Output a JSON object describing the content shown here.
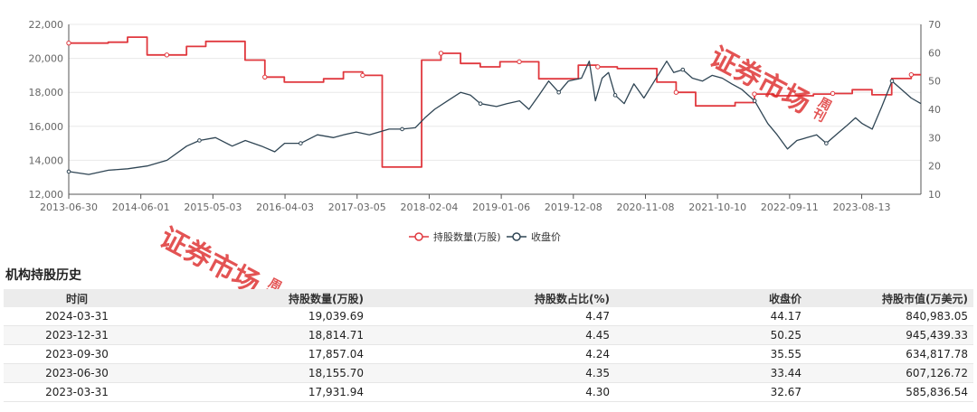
{
  "chart_data": {
    "type": "line",
    "x_ticks": [
      "2013-06-30",
      "2014-06-01",
      "2015-05-03",
      "2016-04-03",
      "2017-03-05",
      "2018-02-04",
      "2019-01-06",
      "2019-12-08",
      "2020-11-08",
      "2021-10-10",
      "2022-09-11",
      "2023-08-13"
    ],
    "y_left_ticks": [
      "12,000",
      "14,000",
      "16,000",
      "18,000",
      "20,000",
      "22,000"
    ],
    "y_right_ticks": [
      "10",
      "20",
      "30",
      "40",
      "50",
      "60",
      "70"
    ],
    "ylim_left": [
      12000,
      22000
    ],
    "ylim_right": [
      10,
      70
    ],
    "xlim": [
      "2013-06-30",
      "2024-05-15"
    ],
    "series": [
      {
        "name": "持股数量(万股)",
        "axis": "left",
        "color": "#e0383e",
        "step": true,
        "points": [
          [
            "2013-06-30",
            20900
          ],
          [
            "2013-12-31",
            20950
          ],
          [
            "2014-03-31",
            21250
          ],
          [
            "2014-06-30",
            20200
          ],
          [
            "2014-09-30",
            20200
          ],
          [
            "2014-12-31",
            20700
          ],
          [
            "2015-03-31",
            21000
          ],
          [
            "2015-09-30",
            19900
          ],
          [
            "2015-12-31",
            18900
          ],
          [
            "2016-03-31",
            18600
          ],
          [
            "2016-09-30",
            18800
          ],
          [
            "2016-12-31",
            19200
          ],
          [
            "2017-03-31",
            19000
          ],
          [
            "2017-06-30",
            13600
          ],
          [
            "2017-09-30",
            13600
          ],
          [
            "2017-12-31",
            19900
          ],
          [
            "2018-03-31",
            20300
          ],
          [
            "2018-06-30",
            19700
          ],
          [
            "2018-09-30",
            19500
          ],
          [
            "2018-12-31",
            19800
          ],
          [
            "2019-03-31",
            19800
          ],
          [
            "2019-06-30",
            18800
          ],
          [
            "2019-09-30",
            18800
          ],
          [
            "2019-12-31",
            19600
          ],
          [
            "2020-03-31",
            19500
          ],
          [
            "2020-06-30",
            19400
          ],
          [
            "2020-09-30",
            19400
          ],
          [
            "2020-12-31",
            18600
          ],
          [
            "2021-03-31",
            18000
          ],
          [
            "2021-06-30",
            17200
          ],
          [
            "2021-09-30",
            17200
          ],
          [
            "2021-12-31",
            17400
          ],
          [
            "2022-03-31",
            17900
          ],
          [
            "2022-06-30",
            17800
          ],
          [
            "2022-09-30",
            17800
          ],
          [
            "2022-12-31",
            17900
          ],
          [
            "2023-03-31",
            17931.94
          ],
          [
            "2023-06-30",
            18155.7
          ],
          [
            "2023-09-30",
            17857.04
          ],
          [
            "2023-12-31",
            18814.71
          ],
          [
            "2024-03-31",
            19039.69
          ],
          [
            "2024-05-15",
            19039.69
          ]
        ]
      },
      {
        "name": "收盘价",
        "axis": "right",
        "color": "#2f4554",
        "step": false,
        "points": [
          [
            "2013-06-30",
            18
          ],
          [
            "2013-10-01",
            17
          ],
          [
            "2014-01-01",
            18.5
          ],
          [
            "2014-04-01",
            19
          ],
          [
            "2014-07-01",
            20
          ],
          [
            "2014-10-01",
            22
          ],
          [
            "2015-01-01",
            27
          ],
          [
            "2015-03-01",
            29
          ],
          [
            "2015-05-15",
            30
          ],
          [
            "2015-08-01",
            27
          ],
          [
            "2015-10-01",
            29
          ],
          [
            "2015-12-15",
            27
          ],
          [
            "2016-02-15",
            25
          ],
          [
            "2016-04-01",
            28
          ],
          [
            "2016-06-15",
            28
          ],
          [
            "2016-09-01",
            31
          ],
          [
            "2016-11-15",
            30
          ],
          [
            "2017-01-01",
            31
          ],
          [
            "2017-03-01",
            32
          ],
          [
            "2017-05-01",
            31
          ],
          [
            "2017-08-01",
            33
          ],
          [
            "2017-10-01",
            33
          ],
          [
            "2017-12-01",
            33.5
          ],
          [
            "2018-01-15",
            37
          ],
          [
            "2018-03-01",
            40
          ],
          [
            "2018-05-01",
            43
          ],
          [
            "2018-07-01",
            46
          ],
          [
            "2018-08-15",
            45
          ],
          [
            "2018-10-01",
            42
          ],
          [
            "2018-12-15",
            41
          ],
          [
            "2019-02-01",
            42
          ],
          [
            "2019-04-01",
            43
          ],
          [
            "2019-05-15",
            40
          ],
          [
            "2019-07-01",
            45
          ],
          [
            "2019-08-15",
            50
          ],
          [
            "2019-10-01",
            46
          ],
          [
            "2019-11-15",
            50
          ],
          [
            "2020-01-15",
            51
          ],
          [
            "2020-02-20",
            57
          ],
          [
            "2020-03-20",
            43
          ],
          [
            "2020-04-20",
            51
          ],
          [
            "2020-05-20",
            53
          ],
          [
            "2020-06-20",
            45
          ],
          [
            "2020-08-01",
            42
          ],
          [
            "2020-09-15",
            49
          ],
          [
            "2020-11-01",
            44
          ],
          [
            "2020-12-20",
            50
          ],
          [
            "2021-02-15",
            57
          ],
          [
            "2021-03-20",
            53
          ],
          [
            "2021-05-01",
            54
          ],
          [
            "2021-06-15",
            51
          ],
          [
            "2021-08-01",
            50
          ],
          [
            "2021-09-15",
            52
          ],
          [
            "2021-11-01",
            51
          ],
          [
            "2021-12-15",
            49
          ],
          [
            "2022-02-01",
            47
          ],
          [
            "2022-04-01",
            43
          ],
          [
            "2022-06-01",
            35
          ],
          [
            "2022-07-15",
            31
          ],
          [
            "2022-09-01",
            26
          ],
          [
            "2022-10-15",
            29
          ],
          [
            "2022-12-01",
            30
          ],
          [
            "2023-01-15",
            31
          ],
          [
            "2023-03-01",
            28
          ],
          [
            "2023-04-15",
            31
          ],
          [
            "2023-06-01",
            34
          ],
          [
            "2023-07-15",
            37
          ],
          [
            "2023-08-15",
            35
          ],
          [
            "2023-10-01",
            33
          ],
          [
            "2023-11-15",
            41
          ],
          [
            "2024-01-01",
            50
          ],
          [
            "2024-02-15",
            47
          ],
          [
            "2024-03-31",
            44
          ],
          [
            "2024-05-15",
            42
          ]
        ]
      }
    ]
  },
  "watermark": {
    "text": "证券市场",
    "sub": "周刊"
  },
  "table": {
    "title": "机构持股历史",
    "headers": [
      "时间",
      "持股数量(万股)",
      "持股数占比(%)",
      "收盘价",
      "持股市值(万美元)"
    ],
    "rows": [
      [
        "2024-03-31",
        "19,039.69",
        "4.47",
        "44.17",
        "840,983.05"
      ],
      [
        "2023-12-31",
        "18,814.71",
        "4.45",
        "50.25",
        "945,439.33"
      ],
      [
        "2023-09-30",
        "17,857.04",
        "4.24",
        "35.55",
        "634,817.78"
      ],
      [
        "2023-06-30",
        "18,155.70",
        "4.35",
        "33.44",
        "607,126.72"
      ],
      [
        "2023-03-31",
        "17,931.94",
        "4.30",
        "32.67",
        "585,836.54"
      ]
    ]
  }
}
